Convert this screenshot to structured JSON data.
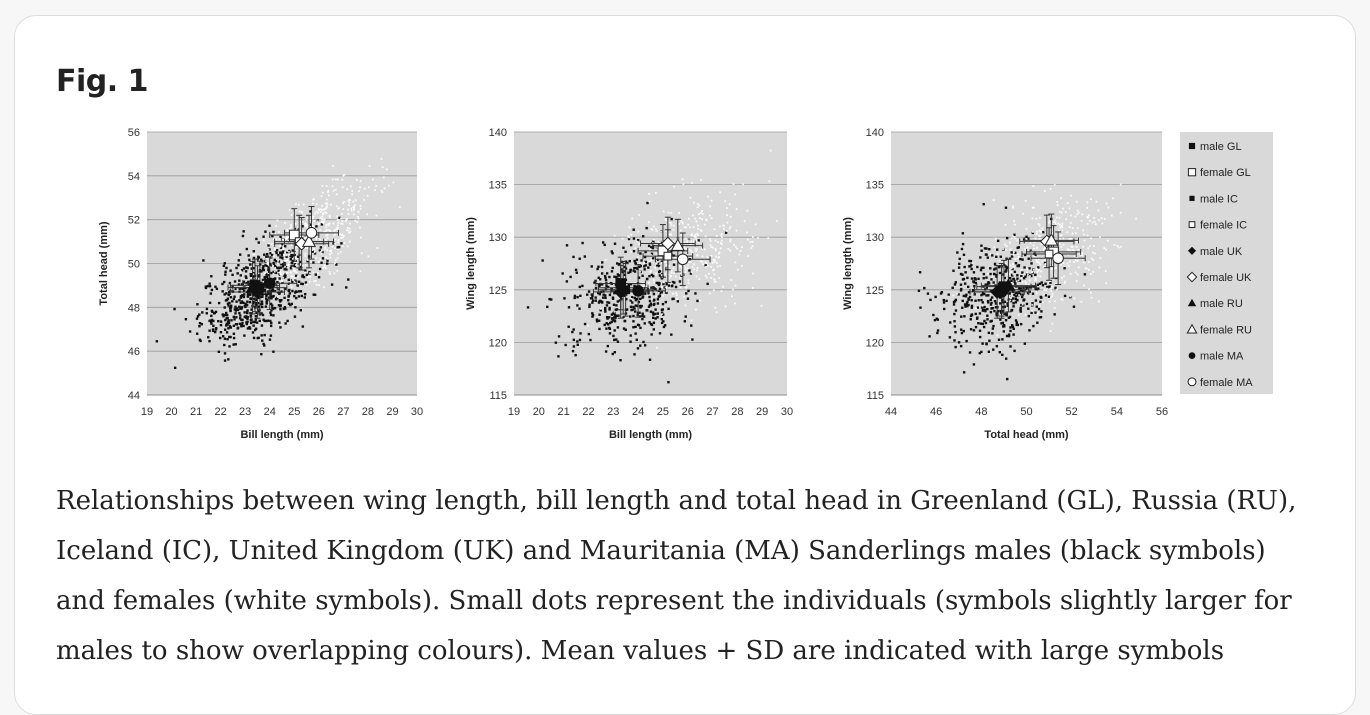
{
  "figure": {
    "title": "Fig. 1",
    "caption": "Relationships between wing length, bill length and total head in Greenland (GL), Russia (RU), Iceland (IC), United Kingdom (UK) and Mauritania (MA) Sanderlings males (black symbols) and females (white symbols). Small dots represent the individuals (symbols slightly larger for males to show overlapping colours). Mean values + SD are indicated with large symbols"
  },
  "legend": [
    {
      "label": "male GL",
      "symbol": "square",
      "fill": "black"
    },
    {
      "label": "female GL",
      "symbol": "square",
      "fill": "white"
    },
    {
      "label": "male IC",
      "symbol": "smallsquare",
      "fill": "black"
    },
    {
      "label": "female IC",
      "symbol": "smallsquare",
      "fill": "white"
    },
    {
      "label": "male UK",
      "symbol": "diamond",
      "fill": "black"
    },
    {
      "label": "female UK",
      "symbol": "diamond",
      "fill": "white"
    },
    {
      "label": "male RU",
      "symbol": "triangle",
      "fill": "black"
    },
    {
      "label": "female RU",
      "symbol": "triangle",
      "fill": "white"
    },
    {
      "label": "male MA",
      "symbol": "circle",
      "fill": "black"
    },
    {
      "label": "female MA",
      "symbol": "circle",
      "fill": "white"
    }
  ],
  "chart_data": [
    {
      "type": "scatter",
      "title": "",
      "xlabel": "Bill length (mm)",
      "ylabel": "Total head (mm)",
      "xlim": [
        19,
        30
      ],
      "ylim": [
        44,
        56
      ],
      "xticks": [
        "19",
        "20",
        "21",
        "22",
        "23",
        "24",
        "25",
        "26",
        "27",
        "28",
        "29",
        "30"
      ],
      "yticks": [
        "44",
        "46",
        "48",
        "50",
        "52",
        "54",
        "56"
      ],
      "clouds": [
        {
          "name": "males (individuals)",
          "cx": 23.6,
          "cy": 48.8,
          "sx": 1.2,
          "sy": 1.3,
          "r": 0.6,
          "n": 650,
          "color": "#111111"
        },
        {
          "name": "females (individuals)",
          "cx": 25.8,
          "cy": 51.2,
          "sx": 1.2,
          "sy": 1.2,
          "r": 0.6,
          "n": 500,
          "color": "#ffffff"
        }
      ],
      "means": [
        {
          "group": "male GL",
          "x": 23.4,
          "y": 49.0,
          "sdx": 1.0,
          "sdy": 1.2
        },
        {
          "group": "female GL",
          "x": 25.0,
          "y": 51.3,
          "sdx": 1.0,
          "sdy": 1.2
        },
        {
          "group": "male IC",
          "x": 23.6,
          "y": 48.9,
          "sdx": 1.1,
          "sdy": 1.2
        },
        {
          "group": "female IC",
          "x": 25.2,
          "y": 51.0,
          "sdx": 1.0,
          "sdy": 1.2
        },
        {
          "group": "male UK",
          "x": 23.5,
          "y": 48.7,
          "sdx": 1.1,
          "sdy": 1.2
        },
        {
          "group": "female UK",
          "x": 25.3,
          "y": 50.9,
          "sdx": 1.1,
          "sdy": 1.2
        },
        {
          "group": "male RU",
          "x": 23.3,
          "y": 48.9,
          "sdx": 1.0,
          "sdy": 1.2
        },
        {
          "group": "female RU",
          "x": 25.6,
          "y": 51.0,
          "sdx": 1.0,
          "sdy": 1.2
        },
        {
          "group": "male MA",
          "x": 24.0,
          "y": 49.1,
          "sdx": 1.1,
          "sdy": 1.2
        },
        {
          "group": "female MA",
          "x": 25.7,
          "y": 51.4,
          "sdx": 1.1,
          "sdy": 1.2
        }
      ]
    },
    {
      "type": "scatter",
      "title": "",
      "xlabel": "Bill length (mm)",
      "ylabel": "Wing length (mm)",
      "xlim": [
        19,
        30
      ],
      "ylim": [
        115,
        140
      ],
      "xticks": [
        "19",
        "20",
        "21",
        "22",
        "23",
        "24",
        "25",
        "26",
        "27",
        "28",
        "29",
        "30"
      ],
      "yticks": [
        "115",
        "120",
        "125",
        "130",
        "135",
        "140"
      ],
      "clouds": [
        {
          "name": "males (individuals)",
          "cx": 23.6,
          "cy": 124.6,
          "sx": 1.3,
          "sy": 2.6,
          "r": 0.2,
          "n": 450,
          "color": "#111111"
        },
        {
          "name": "females (individuals)",
          "cx": 25.9,
          "cy": 128.6,
          "sx": 1.3,
          "sy": 2.6,
          "r": 0.2,
          "n": 400,
          "color": "#ffffff"
        }
      ],
      "means": [
        {
          "group": "male GL",
          "x": 23.3,
          "y": 125.6,
          "sdx": 1.0,
          "sdy": 2.5
        },
        {
          "group": "female GL",
          "x": 25.0,
          "y": 128.7,
          "sdx": 1.0,
          "sdy": 2.5
        },
        {
          "group": "male IC",
          "x": 23.5,
          "y": 125.0,
          "sdx": 1.1,
          "sdy": 2.5
        },
        {
          "group": "female IC",
          "x": 25.2,
          "y": 128.2,
          "sdx": 1.0,
          "sdy": 2.5
        },
        {
          "group": "male UK",
          "x": 23.3,
          "y": 124.8,
          "sdx": 1.1,
          "sdy": 2.5
        },
        {
          "group": "female UK",
          "x": 25.2,
          "y": 129.4,
          "sdx": 1.1,
          "sdy": 2.5
        },
        {
          "group": "male RU",
          "x": 23.4,
          "y": 125.2,
          "sdx": 1.0,
          "sdy": 2.5
        },
        {
          "group": "female RU",
          "x": 25.6,
          "y": 129.2,
          "sdx": 1.0,
          "sdy": 2.5
        },
        {
          "group": "male MA",
          "x": 24.0,
          "y": 124.9,
          "sdx": 1.1,
          "sdy": 2.5
        },
        {
          "group": "female MA",
          "x": 25.8,
          "y": 127.9,
          "sdx": 1.1,
          "sdy": 2.5
        }
      ]
    },
    {
      "type": "scatter",
      "title": "",
      "xlabel": "Total head (mm)",
      "ylabel": "Wing length (mm)",
      "xlim": [
        44,
        56
      ],
      "ylim": [
        115,
        140
      ],
      "xticks": [
        "44",
        "46",
        "48",
        "50",
        "52",
        "54",
        "56"
      ],
      "yticks": [
        "115",
        "120",
        "125",
        "130",
        "135",
        "140"
      ],
      "clouds": [
        {
          "name": "males (individuals)",
          "cx": 48.8,
          "cy": 124.6,
          "sx": 1.3,
          "sy": 2.6,
          "r": 0.2,
          "n": 450,
          "color": "#111111"
        },
        {
          "name": "females (individuals)",
          "cx": 51.2,
          "cy": 128.6,
          "sx": 1.3,
          "sy": 2.6,
          "r": 0.2,
          "n": 400,
          "color": "#ffffff"
        }
      ],
      "means": [
        {
          "group": "male GL",
          "x": 49.0,
          "y": 125.3,
          "sdx": 1.2,
          "sdy": 2.5
        },
        {
          "group": "female GL",
          "x": 51.2,
          "y": 128.6,
          "sdx": 1.2,
          "sdy": 2.5
        },
        {
          "group": "male IC",
          "x": 48.9,
          "y": 125.0,
          "sdx": 1.2,
          "sdy": 2.5
        },
        {
          "group": "female IC",
          "x": 51.0,
          "y": 128.4,
          "sdx": 1.2,
          "sdy": 2.5
        },
        {
          "group": "male UK",
          "x": 48.7,
          "y": 124.8,
          "sdx": 1.2,
          "sdy": 2.5
        },
        {
          "group": "female UK",
          "x": 50.9,
          "y": 129.6,
          "sdx": 1.2,
          "sdy": 2.5
        },
        {
          "group": "male RU",
          "x": 49.2,
          "y": 125.4,
          "sdx": 1.2,
          "sdy": 2.5
        },
        {
          "group": "female RU",
          "x": 51.1,
          "y": 129.7,
          "sdx": 1.2,
          "sdy": 2.5
        },
        {
          "group": "male MA",
          "x": 48.9,
          "y": 124.8,
          "sdx": 1.2,
          "sdy": 2.5
        },
        {
          "group": "female MA",
          "x": 51.4,
          "y": 128.0,
          "sdx": 1.2,
          "sdy": 2.5
        }
      ]
    }
  ]
}
